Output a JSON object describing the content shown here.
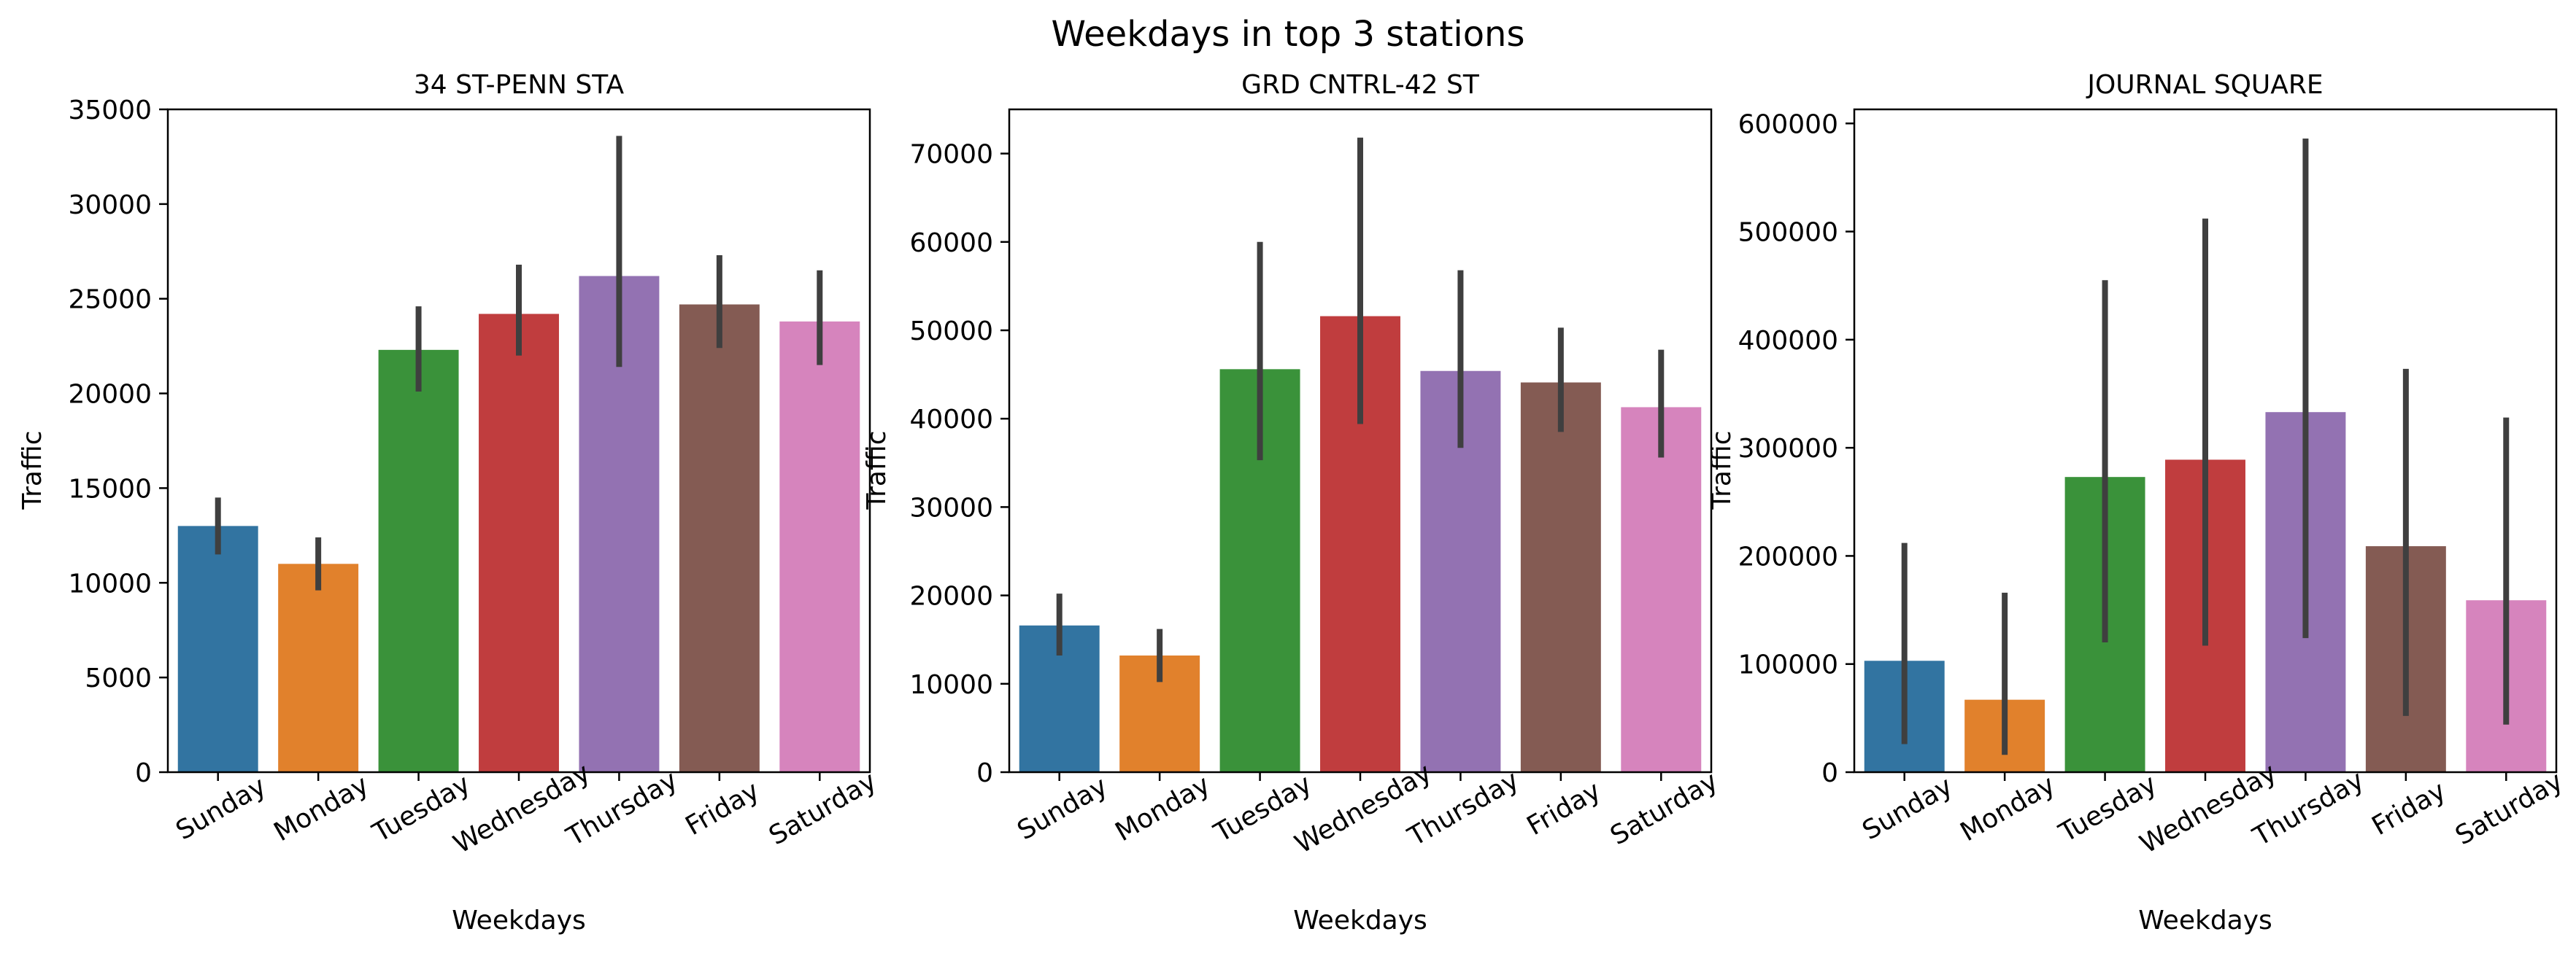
{
  "figure": {
    "title": "Weekdays in top 3 stations"
  },
  "palette": [
    "#3274a1",
    "#e1812c",
    "#3a923a",
    "#c03d3e",
    "#9372b2",
    "#845b53",
    "#d684bd"
  ],
  "errorbar_color": "#3f3f3f",
  "chart_data": [
    {
      "type": "bar",
      "title": "34 ST-PENN STA",
      "xlabel": "Weekdays",
      "ylabel": "Traffic",
      "categories": [
        "Sunday",
        "Monday",
        "Tuesday",
        "Wednesday",
        "Thursday",
        "Friday",
        "Saturday"
      ],
      "values": [
        13000,
        11000,
        22300,
        24200,
        26200,
        24700,
        23800
      ],
      "error_low": [
        11500,
        9600,
        20100,
        22000,
        21400,
        22400,
        21500
      ],
      "error_high": [
        14500,
        12400,
        24600,
        26800,
        33600,
        27300,
        26500
      ],
      "ylim": [
        0,
        35000
      ],
      "yticks": [
        0,
        5000,
        10000,
        15000,
        20000,
        25000,
        30000,
        35000
      ],
      "grid": false,
      "legend": "none"
    },
    {
      "type": "bar",
      "title": "GRD CNTRL-42 ST",
      "xlabel": "Weekdays",
      "ylabel": "Traffic",
      "categories": [
        "Sunday",
        "Monday",
        "Tuesday",
        "Wednesday",
        "Thursday",
        "Friday",
        "Saturday"
      ],
      "values": [
        16600,
        13200,
        45600,
        51600,
        45400,
        44100,
        41300
      ],
      "error_low": [
        13200,
        10200,
        35300,
        39400,
        36700,
        38500,
        35600
      ],
      "error_high": [
        20200,
        16200,
        60000,
        71800,
        56800,
        50300,
        47800
      ],
      "ylim": [
        0,
        75000
      ],
      "yticks": [
        0,
        10000,
        20000,
        30000,
        40000,
        50000,
        60000,
        70000
      ],
      "grid": false,
      "legend": "none"
    },
    {
      "type": "bar",
      "title": "JOURNAL SQUARE",
      "xlabel": "Weekdays",
      "ylabel": "Traffic",
      "categories": [
        "Sunday",
        "Monday",
        "Tuesday",
        "Wednesday",
        "Thursday",
        "Friday",
        "Saturday"
      ],
      "values": [
        103000,
        67000,
        273000,
        289000,
        333000,
        209000,
        159000
      ],
      "error_low": [
        26000,
        16000,
        120000,
        117000,
        124000,
        52000,
        44000
      ],
      "error_high": [
        212000,
        166000,
        455000,
        512000,
        586000,
        373000,
        328000
      ],
      "ylim": [
        0,
        613000
      ],
      "yticks": [
        0,
        100000,
        200000,
        300000,
        400000,
        500000,
        600000
      ],
      "grid": false,
      "legend": "none"
    }
  ]
}
